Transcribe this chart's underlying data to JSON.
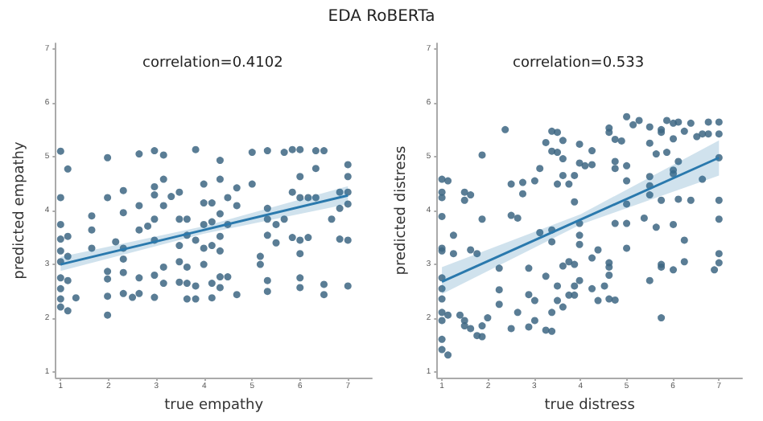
{
  "chart_data": [
    {
      "type": "scatter",
      "title": "EDA RoBERTa",
      "xlabel": "true empathy",
      "ylabel": "predicted empathy",
      "annotations": [
        "correlation=0.4102"
      ],
      "xlim": [
        0.9,
        7.5
      ],
      "ylim": [
        0.9,
        7.1
      ],
      "xticks": [
        1,
        2,
        3,
        4,
        5,
        6,
        7
      ],
      "yticks": [
        1,
        2,
        3,
        4,
        5,
        6,
        7
      ],
      "grid": false,
      "marker": "circle",
      "series": [
        {
          "color": "#3d6683",
          "x": [
            1,
            1,
            1,
            1,
            1,
            1,
            1,
            1,
            1,
            1,
            1.15,
            1.15,
            1.15,
            1.15,
            1.15,
            1.32,
            1.65,
            1.65,
            1.65,
            1.98,
            1.98,
            1.98,
            1.98,
            1.98,
            1.98,
            2.15,
            2.31,
            2.31,
            2.31,
            2.31,
            2.31,
            2.31,
            2.5,
            2.64,
            2.64,
            2.64,
            2.64,
            2.64,
            2.82,
            2.96,
            2.96,
            2.96,
            2.96,
            2.96,
            2.96,
            2.96,
            3.15,
            3.15,
            3.15,
            3.15,
            3.15,
            3.31,
            3.48,
            3.48,
            3.48,
            3.48,
            3.48,
            3.64,
            3.64,
            3.64,
            3.64,
            3.64,
            3.82,
            3.82,
            3.82,
            3.82,
            3.99,
            3.99,
            3.99,
            3.99,
            3.99,
            4.16,
            4.16,
            4.16,
            4.16,
            4.16,
            4.33,
            4.33,
            4.33,
            4.33,
            4.33,
            4.33,
            4.33,
            4.49,
            4.49,
            4.49,
            4.68,
            4.68,
            4.68,
            5,
            5,
            5.17,
            5.17,
            5.32,
            5.32,
            5.32,
            5.32,
            5.32,
            5.32,
            5.5,
            5.5,
            5.67,
            5.67,
            5.84,
            5.84,
            5.84,
            6,
            6,
            6,
            6,
            6,
            6,
            6,
            6.17,
            6.17,
            6.33,
            6.33,
            6.33,
            6.5,
            6.5,
            6.5,
            6.66,
            6.83,
            6.83,
            6.83,
            7,
            7,
            7,
            7,
            7,
            7
          ],
          "values": [
            5.1,
            4.24,
            3.74,
            3.47,
            3.25,
            3.05,
            2.75,
            2.55,
            2.36,
            2.21,
            4.77,
            3.52,
            3.15,
            2.7,
            2.14,
            2.38,
            3.9,
            3.64,
            3.3,
            4.98,
            4.24,
            2.87,
            2.73,
            2.41,
            2.06,
            3.42,
            4.37,
            3.96,
            3.3,
            3.1,
            2.85,
            2.46,
            2.39,
            5.05,
            4.09,
            3.64,
            2.75,
            2.46,
            3.71,
            5.11,
            4.44,
            4.29,
            3.84,
            3.45,
            2.8,
            2.39,
            5.03,
            4.58,
            4.09,
            2.95,
            2.65,
            4.26,
            4.34,
            3.84,
            3.35,
            3.05,
            2.67,
            3.84,
            3.54,
            2.95,
            2.65,
            2.36,
            5.13,
            3.45,
            2.6,
            2.36,
            4.49,
            4.14,
            3.74,
            3.3,
            3.0,
            4.14,
            3.79,
            3.35,
            2.65,
            2.38,
            4.93,
            4.58,
            3.94,
            3.52,
            3.25,
            2.77,
            2.57,
            4.24,
            3.74,
            2.77,
            4.42,
            4.09,
            2.44,
            4.49,
            5.08,
            3.15,
            3.0,
            5.11,
            4.04,
            3.84,
            3.54,
            2.7,
            2.5,
            3.74,
            3.4,
            5.08,
            3.84,
            5.13,
            4.34,
            3.5,
            5.13,
            4.63,
            4.24,
            3.45,
            3.2,
            2.75,
            2.57,
            3.5,
            4.24,
            5.11,
            4.78,
            4.24,
            5.11,
            2.63,
            2.44,
            3.84,
            4.34,
            3.47,
            4.04,
            4.85,
            4.63,
            4.34,
            4.12,
            3.45,
            2.6
          ]
        },
        {
          "type": "line",
          "marker": "none",
          "color": "#2a79ad",
          "x": [
            1,
            4,
            7
          ],
          "values": [
            3.0,
            3.64,
            4.28
          ],
          "lower": [
            2.88,
            3.57,
            4.12
          ],
          "upper": [
            3.14,
            3.71,
            4.45
          ]
        }
      ]
    },
    {
      "type": "scatter",
      "xlabel": "true distress",
      "ylabel": "predicted distress",
      "annotations": [
        "correlation=0.533"
      ],
      "xlim": [
        0.9,
        7.5
      ],
      "ylim": [
        0.9,
        7.1
      ],
      "xticks": [
        1,
        2,
        3,
        4,
        5,
        6,
        7
      ],
      "yticks": [
        1,
        2,
        3,
        4,
        5,
        6,
        7
      ],
      "grid": false,
      "marker": "circle",
      "series": [
        {
          "color": "#3d6683",
          "x": [
            1,
            1,
            1,
            1,
            1,
            1,
            1,
            1,
            1,
            1,
            1,
            1,
            1,
            1.13,
            1.13,
            1.13,
            1.25,
            1.25,
            1.39,
            1.49,
            1.49,
            1.49,
            1.49,
            1.62,
            1.62,
            1.62,
            1.76,
            1.76,
            1.87,
            1.87,
            1.87,
            1.87,
            1.99,
            2.24,
            2.24,
            2.24,
            2.37,
            2.5,
            2.5,
            2.5,
            2.64,
            2.64,
            2.75,
            2.75,
            2.88,
            2.88,
            2.88,
            3.01,
            3.01,
            3.01,
            3.12,
            3.12,
            3.25,
            3.25,
            3.25,
            3.38,
            3.38,
            3.38,
            3.38,
            3.38,
            3.38,
            3.5,
            3.5,
            3.5,
            3.5,
            3.5,
            3.62,
            3.62,
            3.62,
            3.62,
            3.62,
            3.75,
            3.75,
            3.75,
            3.87,
            3.87,
            3.87,
            3.87,
            3.87,
            3.98,
            3.98,
            3.98,
            3.98,
            3.98,
            3.98,
            4.1,
            4.25,
            4.25,
            4.25,
            4.25,
            4.38,
            4.38,
            4.52,
            4.62,
            4.62,
            4.62,
            4.62,
            4.62,
            4.62,
            4.75,
            4.75,
            4.75,
            4.75,
            4.75,
            4.89,
            5,
            5,
            5,
            5,
            5,
            5,
            5.14,
            5.27,
            5.38,
            5.5,
            5.5,
            5.5,
            5.5,
            5.5,
            5.5,
            5.64,
            5.64,
            5.75,
            5.75,
            5.75,
            5.75,
            5.75,
            5.75,
            5.87,
            5.87,
            6.01,
            6.01,
            6.01,
            6.01,
            6.01,
            6.01,
            6.12,
            6.12,
            6.12,
            6.25,
            6.25,
            6.25,
            6.39,
            6.39,
            6.52,
            6.64,
            6.64,
            6.77,
            6.77,
            6.9,
            7,
            7,
            7,
            7,
            7,
            7,
            7
          ],
          "values": [
            4.58,
            4.34,
            4.24,
            3.89,
            3.3,
            3.25,
            2.75,
            2.55,
            2.36,
            2.11,
            1.96,
            1.61,
            1.42,
            4.55,
            2.06,
            1.32,
            3.54,
            3.2,
            2.06,
            4.34,
            4.19,
            1.96,
            1.86,
            4.29,
            3.27,
            1.81,
            3.2,
            1.68,
            5.03,
            3.84,
            1.86,
            1.66,
            2.01,
            2.93,
            2.53,
            2.26,
            5.5,
            4.49,
            3.91,
            1.81,
            3.86,
            2.11,
            4.52,
            4.31,
            2.93,
            2.44,
            1.84,
            4.55,
            2.33,
            1.96,
            4.78,
            3.59,
            5.26,
            2.78,
            1.78,
            5.47,
            5.1,
            3.64,
            3.42,
            2.11,
            1.76,
            5.45,
            5.08,
            4.49,
            2.6,
            2.33,
            5.3,
            4.96,
            4.65,
            2.97,
            2.21,
            4.49,
            3.05,
            2.43,
            4.65,
            4.16,
            3.0,
            2.6,
            2.43,
            5.23,
            4.88,
            3.76,
            3.54,
            3.37,
            2.7,
            4.83,
            5.11,
            4.85,
            3.12,
            2.55,
            3.27,
            2.33,
            2.6,
            5.53,
            5.45,
            3.03,
            2.95,
            2.8,
            2.36,
            5.32,
            4.91,
            4.78,
            3.76,
            2.34,
            5.29,
            5.74,
            4.83,
            4.55,
            4.12,
            3.76,
            3.3,
            5.59,
            5.67,
            3.86,
            5.55,
            5.25,
            4.63,
            4.46,
            4.29,
            2.7,
            5.05,
            3.69,
            5.5,
            5.45,
            4.19,
            3.0,
            2.95,
            2.01,
            5.67,
            5.08,
            5.62,
            5.33,
            4.75,
            4.68,
            3.74,
            2.9,
            5.64,
            4.91,
            4.21,
            5.47,
            3.45,
            3.05,
            5.62,
            4.19,
            5.37,
            5.42,
            4.58,
            5.64,
            5.42,
            2.9,
            5.64,
            5.42,
            4.98,
            4.19,
            3.84,
            3.2,
            3.03
          ]
        },
        {
          "type": "line",
          "marker": "none",
          "color": "#2a79ad",
          "x": [
            1,
            4,
            7
          ],
          "values": [
            2.68,
            3.83,
            4.98
          ],
          "lower": [
            2.45,
            3.74,
            4.65
          ],
          "upper": [
            2.95,
            3.93,
            5.3
          ]
        }
      ]
    }
  ]
}
